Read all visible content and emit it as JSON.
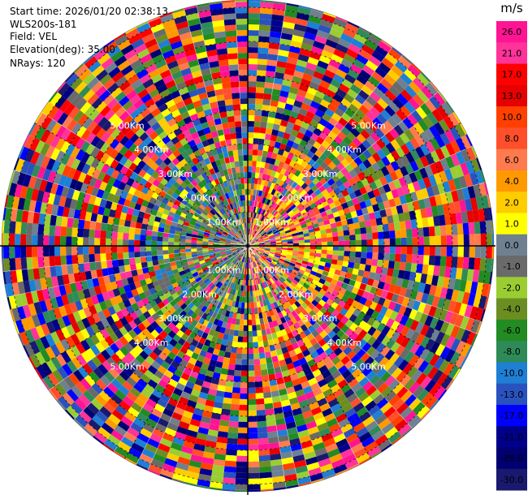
{
  "header": {
    "start_time": "Start time: 2026/01/20 02:38:13",
    "instrument": "WLS200s-181",
    "field": "Field: VEL",
    "elevation": "Elevation(deg): 35.00",
    "nrays": "NRays: 120"
  },
  "chart_data": {
    "type": "heatmap",
    "projection": "polar-ppi",
    "field": "VEL",
    "units": "m/s",
    "n_rays": 120,
    "elevation_deg": 35.0,
    "max_range_km": 7.0,
    "range_ring_labels": [
      "1.00Km",
      "2.00Km",
      "3.00Km",
      "4.00Km",
      "5.00Km"
    ],
    "colorbar": {
      "label": "m/s",
      "ticks": [
        "26.0",
        "21.0",
        "17.0",
        "13.0",
        "10.0",
        "8.0",
        "6.0",
        "4.0",
        "2.0",
        "1.0",
        "0.0",
        "-1.0",
        "-2.0",
        "-4.0",
        "-6.0",
        "-8.0",
        "-10.0",
        "-13.0",
        "-17.0",
        "-21.0",
        "-26.0",
        "-30.0"
      ],
      "colors": [
        "#ff1493",
        "#ff3399",
        "#ff0000",
        "#e60000",
        "#ff4000",
        "#ff4f2b",
        "#ff7a4d",
        "#ff9900",
        "#ffcc00",
        "#ffff00",
        "#6f8090",
        "#6a6a6a",
        "#9acd32",
        "#6b8e23",
        "#228b22",
        "#2e8b57",
        "#1e7fd4",
        "#2a52be",
        "#0000ff",
        "#00008b",
        "#000070",
        "#191970"
      ]
    },
    "pattern_note": ""
  }
}
